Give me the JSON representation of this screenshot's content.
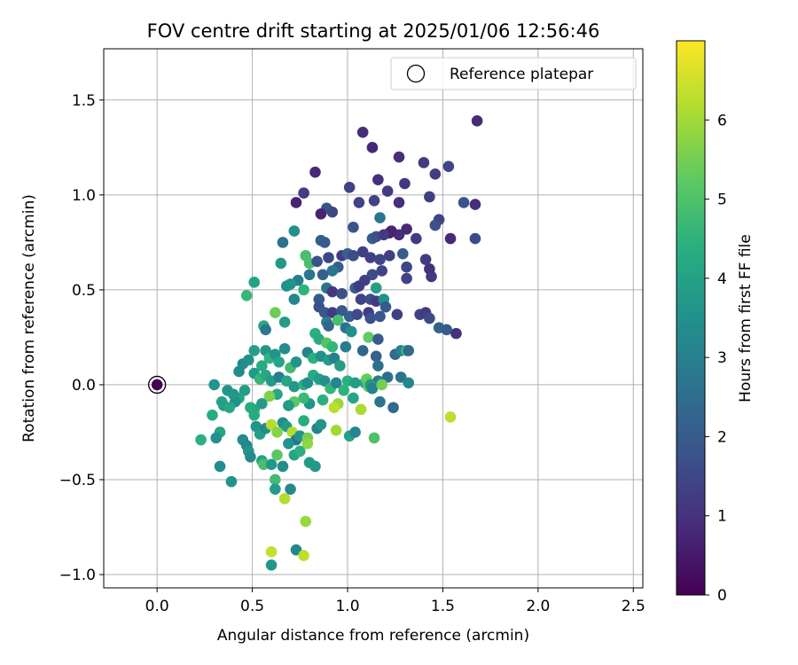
{
  "chart_data": {
    "type": "scatter",
    "title": "FOV centre drift starting at 2025/01/06 12:56:46",
    "xlabel": "Angular distance from reference (arcmin)",
    "ylabel": "Rotation from reference (arcmin)",
    "xlim": [
      -0.28,
      2.55
    ],
    "ylim": [
      -1.07,
      1.77
    ],
    "x_ticks": [
      0.0,
      0.5,
      1.0,
      1.5,
      2.0,
      2.5
    ],
    "x_tick_labels": [
      "0.0",
      "0.5",
      "1.0",
      "1.5",
      "2.0",
      "2.5"
    ],
    "y_ticks": [
      -1.0,
      -0.5,
      0.0,
      0.5,
      1.0,
      1.5
    ],
    "y_tick_labels": [
      "−1.0",
      "−0.5",
      "0.0",
      "0.5",
      "1.0",
      "1.5"
    ],
    "grid": true,
    "legend": {
      "placement": "top-right",
      "entries": [
        "Reference platepar"
      ]
    },
    "reference_point": {
      "x": 0.0,
      "y": 0.0,
      "value": 0.0,
      "label": "Reference platepar"
    },
    "colorbar": {
      "label": "Hours from first FF file",
      "range": [
        0,
        7.0
      ],
      "ticks": [
        0,
        1,
        2,
        3,
        4,
        5,
        6
      ],
      "tick_labels": [
        "0",
        "1",
        "2",
        "3",
        "4",
        "5",
        "6"
      ],
      "colormap": "viridis"
    },
    "points": [
      [
        1.68,
        1.39,
        0.8
      ],
      [
        1.08,
        1.33,
        0.9
      ],
      [
        1.13,
        1.25,
        0.8
      ],
      [
        1.27,
        1.2,
        0.9
      ],
      [
        1.4,
        1.17,
        1.2
      ],
      [
        1.53,
        1.15,
        1.5
      ],
      [
        1.46,
        1.11,
        1.3
      ],
      [
        0.83,
        1.12,
        0.8
      ],
      [
        1.16,
        1.08,
        0.9
      ],
      [
        1.3,
        1.06,
        1.1
      ],
      [
        1.01,
        1.04,
        1.4
      ],
      [
        1.21,
        1.02,
        1.2
      ],
      [
        0.77,
        1.01,
        1.3
      ],
      [
        0.73,
        0.96,
        0.7
      ],
      [
        1.43,
        0.99,
        1.3
      ],
      [
        1.61,
        0.96,
        1.8
      ],
      [
        1.67,
        0.95,
        0.9
      ],
      [
        1.27,
        0.96,
        0.9
      ],
      [
        1.14,
        0.97,
        1.4
      ],
      [
        1.06,
        0.96,
        1.4
      ],
      [
        0.89,
        0.93,
        1.8
      ],
      [
        0.92,
        0.91,
        1.5
      ],
      [
        0.86,
        0.9,
        0.7
      ],
      [
        1.48,
        0.87,
        1.4
      ],
      [
        1.46,
        0.84,
        1.7
      ],
      [
        1.31,
        0.82,
        0.8
      ],
      [
        1.27,
        0.79,
        0.9
      ],
      [
        1.22,
        0.8,
        0.6
      ],
      [
        1.23,
        0.81,
        0.7
      ],
      [
        1.17,
        0.88,
        2.7
      ],
      [
        1.03,
        0.83,
        1.8
      ],
      [
        0.72,
        0.81,
        3.5
      ],
      [
        0.66,
        0.75,
        2.6
      ],
      [
        0.86,
        0.76,
        2.1
      ],
      [
        0.88,
        0.75,
        2.0
      ],
      [
        1.13,
        0.77,
        2.2
      ],
      [
        1.15,
        0.78,
        1.7
      ],
      [
        1.19,
        0.79,
        1.2
      ],
      [
        1.36,
        0.77,
        1.2
      ],
      [
        1.54,
        0.77,
        0.8
      ],
      [
        1.67,
        0.77,
        1.6
      ],
      [
        0.78,
        0.68,
        4.9
      ],
      [
        0.8,
        0.64,
        4.9
      ],
      [
        0.65,
        0.64,
        3.7
      ],
      [
        0.84,
        0.65,
        1.8
      ],
      [
        0.9,
        0.67,
        1.5
      ],
      [
        0.97,
        0.68,
        1.2
      ],
      [
        1.0,
        0.69,
        2.2
      ],
      [
        1.03,
        0.68,
        1.6
      ],
      [
        1.08,
        0.7,
        1.3
      ],
      [
        1.12,
        0.67,
        1.3
      ],
      [
        1.17,
        0.66,
        1.5
      ],
      [
        1.22,
        0.68,
        1.3
      ],
      [
        1.29,
        0.69,
        2.0
      ],
      [
        1.41,
        0.66,
        1.2
      ],
      [
        1.43,
        0.61,
        1.0
      ],
      [
        1.44,
        0.57,
        1.1
      ],
      [
        1.31,
        0.62,
        1.5
      ],
      [
        1.31,
        0.56,
        1.4
      ],
      [
        1.18,
        0.6,
        1.4
      ],
      [
        1.13,
        0.58,
        1.6
      ],
      [
        0.95,
        0.62,
        2.1
      ],
      [
        0.92,
        0.6,
        2.7
      ],
      [
        0.87,
        0.58,
        2.2
      ],
      [
        0.8,
        0.58,
        2.8
      ],
      [
        0.74,
        0.55,
        3.0
      ],
      [
        0.7,
        0.53,
        3.6
      ],
      [
        0.68,
        0.52,
        3.5
      ],
      [
        0.77,
        0.5,
        4.5
      ],
      [
        0.51,
        0.54,
        4.0
      ],
      [
        0.47,
        0.47,
        4.6
      ],
      [
        0.72,
        0.45,
        3.2
      ],
      [
        0.85,
        0.45,
        2.0
      ],
      [
        0.89,
        0.51,
        2.7
      ],
      [
        0.92,
        0.49,
        1.1
      ],
      [
        0.97,
        0.48,
        1.7
      ],
      [
        1.04,
        0.51,
        2.1
      ],
      [
        1.06,
        0.52,
        1.2
      ],
      [
        1.09,
        0.55,
        1.3
      ],
      [
        1.15,
        0.51,
        3.9
      ],
      [
        1.07,
        0.45,
        1.4
      ],
      [
        1.12,
        0.45,
        1.7
      ],
      [
        1.15,
        0.44,
        1.2
      ],
      [
        1.19,
        0.45,
        3.5
      ],
      [
        1.2,
        0.41,
        2.0
      ],
      [
        0.85,
        0.41,
        1.7
      ],
      [
        0.88,
        0.38,
        1.9
      ],
      [
        0.92,
        0.38,
        1.2
      ],
      [
        0.97,
        0.39,
        2.0
      ],
      [
        1.01,
        0.36,
        2.1
      ],
      [
        1.05,
        0.37,
        1.6
      ],
      [
        1.11,
        0.38,
        1.2
      ],
      [
        1.12,
        0.35,
        1.7
      ],
      [
        1.17,
        0.36,
        1.9
      ],
      [
        1.26,
        0.37,
        1.3
      ],
      [
        1.38,
        0.37,
        1.4
      ],
      [
        1.41,
        0.38,
        1.2
      ],
      [
        1.43,
        0.35,
        1.6
      ],
      [
        1.48,
        0.3,
        2.2
      ],
      [
        1.52,
        0.29,
        2.0
      ],
      [
        1.57,
        0.27,
        1.0
      ],
      [
        0.62,
        0.38,
        5.4
      ],
      [
        0.56,
        0.31,
        4.2
      ],
      [
        0.57,
        0.29,
        2.8
      ],
      [
        0.67,
        0.33,
        3.8
      ],
      [
        0.89,
        0.33,
        2.9
      ],
      [
        0.9,
        0.31,
        2.3
      ],
      [
        0.95,
        0.34,
        4.9
      ],
      [
        0.99,
        0.3,
        2.7
      ],
      [
        1.02,
        0.28,
        3.5
      ],
      [
        0.83,
        0.27,
        4.4
      ],
      [
        0.85,
        0.24,
        4.3
      ],
      [
        0.89,
        0.22,
        5.1
      ],
      [
        0.92,
        0.2,
        4.6
      ],
      [
        0.99,
        0.2,
        2.9
      ],
      [
        1.11,
        0.25,
        5.3
      ],
      [
        1.16,
        0.24,
        2.0
      ],
      [
        1.08,
        0.18,
        2.3
      ],
      [
        1.15,
        0.15,
        2.2
      ],
      [
        1.25,
        0.16,
        2.4
      ],
      [
        1.28,
        0.18,
        3.1
      ],
      [
        1.31,
        0.18,
        4.8
      ],
      [
        1.32,
        0.18,
        2.4
      ],
      [
        1.16,
        0.1,
        2.6
      ],
      [
        1.21,
        0.04,
        2.5
      ],
      [
        1.28,
        0.04,
        2.7
      ],
      [
        1.32,
        0.01,
        3.2
      ],
      [
        1.16,
        0.02,
        3.0
      ],
      [
        1.09,
        0.01,
        4.3
      ],
      [
        1.1,
        0.03,
        5.3
      ],
      [
        1.0,
        0.02,
        4.4
      ],
      [
        1.04,
        0.01,
        3.9
      ],
      [
        1.11,
        -0.01,
        5.2
      ],
      [
        1.12,
        0.0,
        3.7
      ],
      [
        1.13,
        -0.02,
        3.1
      ],
      [
        1.18,
        0.0,
        5.5
      ],
      [
        1.17,
        -0.09,
        2.7
      ],
      [
        1.24,
        -0.12,
        2.4
      ],
      [
        0.43,
        0.07,
        3.3
      ],
      [
        0.45,
        0.11,
        3.4
      ],
      [
        0.48,
        0.13,
        3.5
      ],
      [
        0.51,
        0.18,
        3.9
      ],
      [
        0.55,
        0.1,
        4.3
      ],
      [
        0.57,
        0.18,
        3.7
      ],
      [
        0.59,
        0.14,
        4.5
      ],
      [
        0.62,
        0.16,
        3.6
      ],
      [
        0.64,
        0.12,
        4.1
      ],
      [
        0.67,
        0.19,
        3.4
      ],
      [
        0.7,
        0.09,
        4.8
      ],
      [
        0.73,
        0.12,
        3.6
      ],
      [
        0.79,
        0.17,
        3.1
      ],
      [
        0.82,
        0.14,
        4.4
      ],
      [
        0.86,
        0.15,
        3.5
      ],
      [
        0.9,
        0.13,
        3.9
      ],
      [
        0.93,
        0.14,
        3.0
      ],
      [
        0.96,
        0.1,
        3.9
      ],
      [
        0.51,
        0.06,
        3.8
      ],
      [
        0.54,
        0.03,
        4.6
      ],
      [
        0.57,
        0.05,
        4.2
      ],
      [
        0.6,
        0.02,
        3.8
      ],
      [
        0.64,
        0.04,
        3.0
      ],
      [
        0.68,
        0.02,
        4.1
      ],
      [
        0.72,
        -0.01,
        3.7
      ],
      [
        0.77,
        0.0,
        4.4
      ],
      [
        0.79,
        0.01,
        3.4
      ],
      [
        0.82,
        0.05,
        4.3
      ],
      [
        0.85,
        0.03,
        3.9
      ],
      [
        0.88,
        0.02,
        3.5
      ],
      [
        0.91,
        -0.02,
        4.6
      ],
      [
        0.94,
        0.01,
        3.2
      ],
      [
        0.98,
        -0.03,
        4.5
      ],
      [
        1.03,
        -0.07,
        4.1
      ],
      [
        1.07,
        -0.13,
        6.1
      ],
      [
        0.95,
        -0.1,
        5.9
      ],
      [
        0.93,
        -0.12,
        6.3
      ],
      [
        0.87,
        -0.08,
        4.4
      ],
      [
        0.8,
        -0.1,
        3.6
      ],
      [
        0.77,
        -0.07,
        4.7
      ],
      [
        0.72,
        -0.09,
        5.2
      ],
      [
        0.69,
        -0.11,
        3.8
      ],
      [
        0.63,
        -0.05,
        4.2
      ],
      [
        0.59,
        -0.06,
        5.6
      ],
      [
        0.55,
        -0.1,
        3.8
      ],
      [
        0.51,
        -0.13,
        4.0
      ],
      [
        0.49,
        -0.12,
        4.3
      ],
      [
        0.46,
        -0.03,
        3.9
      ],
      [
        0.43,
        -0.07,
        4.1
      ],
      [
        0.41,
        -0.09,
        3.5
      ],
      [
        0.37,
        -0.03,
        3.6
      ],
      [
        0.4,
        -0.05,
        3.7
      ],
      [
        0.34,
        -0.09,
        4.0
      ],
      [
        0.3,
        0.0,
        3.6
      ],
      [
        0.35,
        -0.11,
        3.9
      ],
      [
        0.33,
        -0.25,
        4.1
      ],
      [
        0.29,
        -0.16,
        4.3
      ],
      [
        0.38,
        -0.12,
        4.2
      ],
      [
        0.51,
        -0.16,
        4.3
      ],
      [
        0.52,
        -0.22,
        3.6
      ],
      [
        0.54,
        -0.26,
        3.9
      ],
      [
        0.57,
        -0.23,
        3.3
      ],
      [
        0.6,
        -0.21,
        6.2
      ],
      [
        0.63,
        -0.25,
        5.7
      ],
      [
        0.66,
        -0.2,
        3.4
      ],
      [
        0.68,
        -0.22,
        3.8
      ],
      [
        0.71,
        -0.25,
        6.2
      ],
      [
        0.73,
        -0.29,
        2.7
      ],
      [
        0.75,
        -0.27,
        3.6
      ],
      [
        0.77,
        -0.19,
        4.3
      ],
      [
        0.79,
        -0.28,
        5.5
      ],
      [
        0.84,
        -0.23,
        3.1
      ],
      [
        0.86,
        -0.21,
        3.6
      ],
      [
        0.94,
        -0.24,
        6.0
      ],
      [
        1.01,
        -0.27,
        4.0
      ],
      [
        1.04,
        -0.25,
        3.2
      ],
      [
        1.14,
        -0.28,
        5.0
      ],
      [
        0.23,
        -0.29,
        4.4
      ],
      [
        0.31,
        -0.28,
        3.5
      ],
      [
        0.45,
        -0.29,
        3.3
      ],
      [
        0.47,
        -0.32,
        3.2
      ],
      [
        0.48,
        -0.35,
        3.6
      ],
      [
        0.49,
        -0.38,
        3.3
      ],
      [
        0.55,
        -0.4,
        4.0
      ],
      [
        0.56,
        -0.42,
        4.9
      ],
      [
        0.6,
        -0.42,
        3.7
      ],
      [
        0.63,
        -0.37,
        5.2
      ],
      [
        0.66,
        -0.43,
        3.4
      ],
      [
        0.69,
        -0.31,
        3.6
      ],
      [
        0.72,
        -0.37,
        4.1
      ],
      [
        0.75,
        -0.35,
        4.4
      ],
      [
        0.79,
        -0.31,
        5.8
      ],
      [
        0.8,
        -0.41,
        3.8
      ],
      [
        0.83,
        -0.43,
        3.7
      ],
      [
        0.33,
        -0.43,
        3.4
      ],
      [
        0.39,
        -0.51,
        3.6
      ],
      [
        0.62,
        -0.5,
        4.8
      ],
      [
        0.62,
        -0.55,
        3.8
      ],
      [
        0.67,
        -0.6,
        6.2
      ],
      [
        0.7,
        -0.55,
        3.3
      ],
      [
        0.78,
        -0.72,
        5.9
      ],
      [
        0.6,
        -0.88,
        6.4
      ],
      [
        0.73,
        -0.87,
        3.2
      ],
      [
        0.6,
        -0.95,
        3.7
      ],
      [
        0.77,
        -0.9,
        6.3
      ],
      [
        1.54,
        -0.17,
        6.3
      ]
    ]
  }
}
